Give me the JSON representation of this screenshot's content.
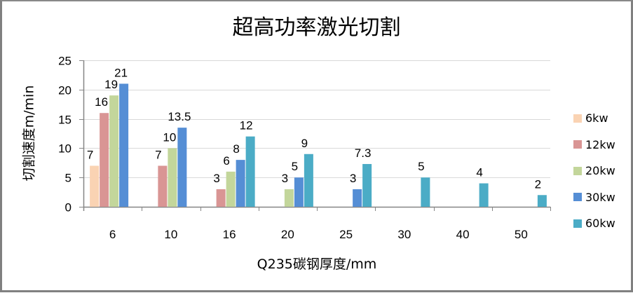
{
  "chart_data": {
    "type": "bar",
    "title": "超高功率激光切割",
    "xlabel": "Q235碳钢厚度/mm",
    "ylabel": "切割速度m/min",
    "categories": [
      "6",
      "10",
      "16",
      "20",
      "25",
      "30",
      "40",
      "50"
    ],
    "ylim": [
      0,
      25
    ],
    "yticks": [
      0,
      5,
      10,
      15,
      20,
      25
    ],
    "grid": true,
    "legend_position": "right",
    "series": [
      {
        "name": "6kw",
        "color": "#FAD3B3",
        "values": [
          7,
          null,
          null,
          null,
          null,
          null,
          null,
          null
        ]
      },
      {
        "name": "12kw",
        "color": "#D99594",
        "values": [
          16,
          7,
          3,
          null,
          null,
          null,
          null,
          null
        ]
      },
      {
        "name": "20kw",
        "color": "#C3D69B",
        "values": [
          19,
          10,
          6,
          3,
          null,
          null,
          null,
          null
        ]
      },
      {
        "name": "30kw",
        "color": "#558ED5",
        "values": [
          21,
          13.5,
          8,
          5,
          3,
          null,
          null,
          null
        ]
      },
      {
        "name": "60kw",
        "color": "#4BACC6",
        "values": [
          null,
          null,
          12,
          9,
          7.3,
          5,
          4,
          2
        ]
      }
    ]
  }
}
